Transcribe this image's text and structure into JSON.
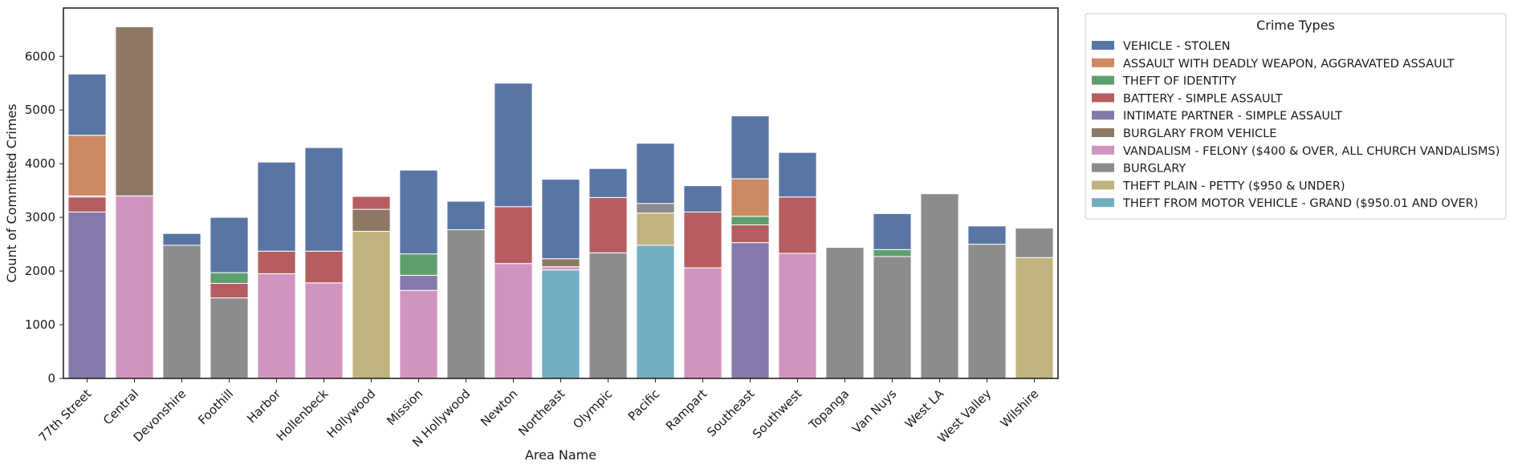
{
  "chart_data": {
    "type": "bar",
    "stacked": true,
    "title": "",
    "xlabel": "Area Name",
    "ylabel": "Count of Committed Crimes",
    "ylim": [
      0,
      6900
    ],
    "yticks": [
      0,
      1000,
      2000,
      3000,
      4000,
      5000,
      6000
    ],
    "grid": false,
    "legend": {
      "title": "Crime Types",
      "placement": "outside-top-right",
      "entries": [
        {
          "name": "VEHICLE - STOLEN",
          "color": "#5875a4"
        },
        {
          "name": "ASSAULT WITH DEADLY WEAPON, AGGRAVATED ASSAULT",
          "color": "#cc8963"
        },
        {
          "name": "THEFT OF IDENTITY",
          "color": "#5f9e6e"
        },
        {
          "name": "BATTERY - SIMPLE ASSAULT",
          "color": "#b55d60"
        },
        {
          "name": "INTIMATE PARTNER - SIMPLE ASSAULT",
          "color": "#857aab"
        },
        {
          "name": "BURGLARY FROM VEHICLE",
          "color": "#8d7866"
        },
        {
          "name": "VANDALISM - FELONY ($400 & OVER, ALL CHURCH VANDALISMS)",
          "color": "#d095bf"
        },
        {
          "name": "BURGLARY",
          "color": "#8c8c8c"
        },
        {
          "name": "THEFT PLAIN - PETTY ($950 & UNDER)",
          "color": "#c1b37f"
        },
        {
          "name": "THEFT FROM MOTOR VEHICLE - GRAND ($950.01 AND OVER)",
          "color": "#71aec0"
        }
      ]
    },
    "categories": [
      "77th Street",
      "Central",
      "Devonshire",
      "Foothill",
      "Harbor",
      "Hollenbeck",
      "Hollywood",
      "Mission",
      "N Hollywood",
      "Newton",
      "Northeast",
      "Olympic",
      "Pacific",
      "Rampart",
      "Southeast",
      "Southwest",
      "Topanga",
      "Van Nuys",
      "West LA",
      "West Valley",
      "Wilshire"
    ],
    "bars": [
      [
        {
          "type": "INTIMATE PARTNER - SIMPLE ASSAULT",
          "value": 3100
        },
        {
          "type": "BATTERY - SIMPLE ASSAULT",
          "value": 280
        },
        {
          "type": "THEFT OF IDENTITY",
          "value": 20
        },
        {
          "type": "ASSAULT WITH DEADLY WEAPON, AGGRAVATED ASSAULT",
          "value": 1130
        },
        {
          "type": "VEHICLE - STOLEN",
          "value": 1140
        }
      ],
      [
        {
          "type": "VANDALISM - FELONY ($400 & OVER, ALL CHURCH VANDALISMS)",
          "value": 3400
        },
        {
          "type": "BURGLARY FROM VEHICLE",
          "value": 3150
        }
      ],
      [
        {
          "type": "BURGLARY",
          "value": 2480
        },
        {
          "type": "VEHICLE - STOLEN",
          "value": 220
        }
      ],
      [
        {
          "type": "BURGLARY",
          "value": 1500
        },
        {
          "type": "BATTERY - SIMPLE ASSAULT",
          "value": 270
        },
        {
          "type": "THEFT OF IDENTITY",
          "value": 200
        },
        {
          "type": "VEHICLE - STOLEN",
          "value": 1030
        }
      ],
      [
        {
          "type": "VANDALISM - FELONY ($400 & OVER, ALL CHURCH VANDALISMS)",
          "value": 1950
        },
        {
          "type": "BATTERY - SIMPLE ASSAULT",
          "value": 420
        },
        {
          "type": "VEHICLE - STOLEN",
          "value": 1660
        }
      ],
      [
        {
          "type": "VANDALISM - FELONY ($400 & OVER, ALL CHURCH VANDALISMS)",
          "value": 1780
        },
        {
          "type": "BATTERY - SIMPLE ASSAULT",
          "value": 590
        },
        {
          "type": "VEHICLE - STOLEN",
          "value": 1930
        }
      ],
      [
        {
          "type": "THEFT PLAIN - PETTY ($950 & UNDER)",
          "value": 2740
        },
        {
          "type": "BURGLARY FROM VEHICLE",
          "value": 410
        },
        {
          "type": "BATTERY - SIMPLE ASSAULT",
          "value": 240
        }
      ],
      [
        {
          "type": "VANDALISM - FELONY ($400 & OVER, ALL CHURCH VANDALISMS)",
          "value": 1640
        },
        {
          "type": "INTIMATE PARTNER - SIMPLE ASSAULT",
          "value": 280
        },
        {
          "type": "THEFT OF IDENTITY",
          "value": 400
        },
        {
          "type": "VEHICLE - STOLEN",
          "value": 1560
        }
      ],
      [
        {
          "type": "BURGLARY",
          "value": 2770
        },
        {
          "type": "VEHICLE - STOLEN",
          "value": 530
        }
      ],
      [
        {
          "type": "VANDALISM - FELONY ($400 & OVER, ALL CHURCH VANDALISMS)",
          "value": 2140
        },
        {
          "type": "BATTERY - SIMPLE ASSAULT",
          "value": 1060
        },
        {
          "type": "VEHICLE - STOLEN",
          "value": 2300
        }
      ],
      [
        {
          "type": "THEFT FROM MOTOR VEHICLE - GRAND ($950.01 AND OVER)",
          "value": 2020
        },
        {
          "type": "VANDALISM - FELONY ($400 & OVER, ALL CHURCH VANDALISMS)",
          "value": 60
        },
        {
          "type": "BURGLARY FROM VEHICLE",
          "value": 150
        },
        {
          "type": "VEHICLE - STOLEN",
          "value": 1480
        }
      ],
      [
        {
          "type": "BURGLARY",
          "value": 2340
        },
        {
          "type": "BATTERY - SIMPLE ASSAULT",
          "value": 1030
        },
        {
          "type": "VEHICLE - STOLEN",
          "value": 540
        }
      ],
      [
        {
          "type": "THEFT FROM MOTOR VEHICLE - GRAND ($950.01 AND OVER)",
          "value": 2480
        },
        {
          "type": "THEFT PLAIN - PETTY ($950 & UNDER)",
          "value": 600
        },
        {
          "type": "BURGLARY",
          "value": 180
        },
        {
          "type": "VEHICLE - STOLEN",
          "value": 1120
        }
      ],
      [
        {
          "type": "VANDALISM - FELONY ($400 & OVER, ALL CHURCH VANDALISMS)",
          "value": 2060
        },
        {
          "type": "BATTERY - SIMPLE ASSAULT",
          "value": 1040
        },
        {
          "type": "VEHICLE - STOLEN",
          "value": 490
        }
      ],
      [
        {
          "type": "INTIMATE PARTNER - SIMPLE ASSAULT",
          "value": 2530
        },
        {
          "type": "BATTERY - SIMPLE ASSAULT",
          "value": 330
        },
        {
          "type": "THEFT OF IDENTITY",
          "value": 160
        },
        {
          "type": "ASSAULT WITH DEADLY WEAPON, AGGRAVATED ASSAULT",
          "value": 700
        },
        {
          "type": "VEHICLE - STOLEN",
          "value": 1170
        }
      ],
      [
        {
          "type": "VANDALISM - FELONY ($400 & OVER, ALL CHURCH VANDALISMS)",
          "value": 2330
        },
        {
          "type": "BATTERY - SIMPLE ASSAULT",
          "value": 1050
        },
        {
          "type": "VEHICLE - STOLEN",
          "value": 830
        }
      ],
      [
        {
          "type": "BURGLARY",
          "value": 2440
        }
      ],
      [
        {
          "type": "BURGLARY",
          "value": 2270
        },
        {
          "type": "THEFT OF IDENTITY",
          "value": 130
        },
        {
          "type": "VEHICLE - STOLEN",
          "value": 670
        }
      ],
      [
        {
          "type": "BURGLARY",
          "value": 3440
        }
      ],
      [
        {
          "type": "BURGLARY",
          "value": 2500
        },
        {
          "type": "VEHICLE - STOLEN",
          "value": 340
        }
      ],
      [
        {
          "type": "THEFT PLAIN - PETTY ($950 & UNDER)",
          "value": 2250
        },
        {
          "type": "BURGLARY",
          "value": 550
        }
      ]
    ]
  }
}
